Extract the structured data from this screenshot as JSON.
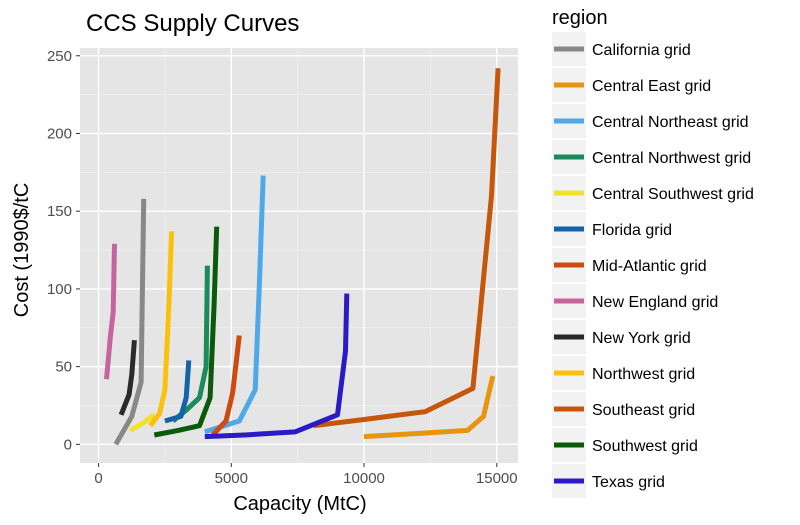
{
  "chart_data": {
    "type": "line",
    "title": "CCS Supply Curves",
    "xlabel": "Capacity (MtC)",
    "ylabel": "Cost (1990$/tC",
    "xlim": [
      -700,
      15800
    ],
    "ylim": [
      -12,
      255
    ],
    "x_ticks": [
      0,
      5000,
      10000,
      15000
    ],
    "x_tick_labels": [
      "0",
      "5000",
      "10000",
      "15000"
    ],
    "y_ticks": [
      0,
      50,
      100,
      150,
      200,
      250
    ],
    "y_tick_labels": [
      "0",
      "50",
      "100",
      "150",
      "200",
      "250"
    ],
    "grid": true,
    "legend_title": "region",
    "legend_position": "right",
    "series": [
      {
        "name": "California grid",
        "color": "#888888",
        "x": [
          650,
          1250,
          1600,
          1700
        ],
        "y": [
          0,
          18,
          40,
          158
        ]
      },
      {
        "name": "Central East grid",
        "color": "#E69510",
        "x": [
          10000,
          12000,
          13900,
          14500,
          14850
        ],
        "y": [
          5,
          7,
          9,
          18,
          44
        ]
      },
      {
        "name": "Central Northeast grid",
        "color": "#4FA8E8",
        "x": [
          4000,
          5300,
          5900,
          6050,
          6200
        ],
        "y": [
          8,
          15,
          35,
          100,
          173
        ]
      },
      {
        "name": "Central Northwest grid",
        "color": "#1B8B5E",
        "x": [
          2800,
          3300,
          3800,
          4050,
          4100
        ],
        "y": [
          15,
          22,
          30,
          50,
          115
        ]
      },
      {
        "name": "Central Southwest grid",
        "color": "#F2E12A",
        "x": [
          1200,
          1700,
          2100
        ],
        "y": [
          9,
          14,
          19
        ]
      },
      {
        "name": "Florida grid",
        "color": "#1462A8",
        "x": [
          2500,
          3100,
          3300,
          3400
        ],
        "y": [
          15,
          18,
          30,
          54
        ]
      },
      {
        "name": "Mid-Atlantic grid",
        "color": "#CC4B0E",
        "x": [
          4300,
          4800,
          5050,
          5200,
          5300
        ],
        "y": [
          6,
          15,
          33,
          55,
          70
        ]
      },
      {
        "name": "New England grid",
        "color": "#C664A0",
        "x": [
          300,
          450,
          550,
          600
        ],
        "y": [
          42,
          70,
          85,
          129
        ]
      },
      {
        "name": "New York grid",
        "color": "#2A2A2A",
        "x": [
          850,
          1150,
          1250,
          1350
        ],
        "y": [
          19,
          32,
          45,
          67
        ]
      },
      {
        "name": "Northwest grid",
        "color": "#FBC00E",
        "x": [
          1950,
          2300,
          2500,
          2650,
          2750
        ],
        "y": [
          12,
          20,
          35,
          90,
          137
        ]
      },
      {
        "name": "Southeast grid",
        "color": "#C5560A",
        "x": [
          8100,
          10000,
          12300,
          14100,
          14800,
          15050
        ],
        "y": [
          12,
          16,
          21,
          36,
          160,
          242
        ]
      },
      {
        "name": "Southwest grid",
        "color": "#0B5A0B",
        "x": [
          2100,
          3000,
          3800,
          4200,
          4350,
          4450
        ],
        "y": [
          6,
          9,
          12,
          30,
          90,
          140
        ]
      },
      {
        "name": "Texas grid",
        "color": "#2B1BC4",
        "x": [
          4000,
          5500,
          7400,
          9000,
          9300,
          9350
        ],
        "y": [
          5,
          6,
          8,
          19,
          60,
          97
        ]
      }
    ]
  }
}
